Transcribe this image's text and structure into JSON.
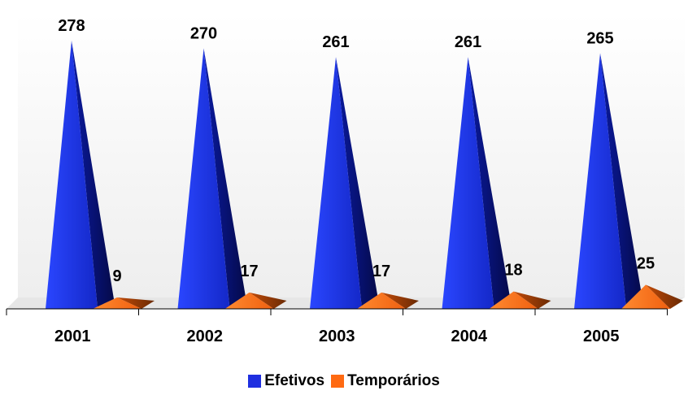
{
  "chart_data": {
    "type": "bar",
    "categories": [
      "2001",
      "2002",
      "2003",
      "2004",
      "2005"
    ],
    "series": [
      {
        "name": "Efetivos",
        "values": [
          278,
          270,
          261,
          261,
          265
        ],
        "color": "#1f2fe0"
      },
      {
        "name": "Temporários",
        "values": [
          9,
          17,
          17,
          18,
          25
        ],
        "color": "#ff6a12"
      }
    ],
    "title": "",
    "xlabel": "",
    "ylabel": "",
    "ylim": [
      0,
      278
    ],
    "grid": false,
    "legend_position": "bottom",
    "bar_shape": "pyramid",
    "data_labels": true
  }
}
